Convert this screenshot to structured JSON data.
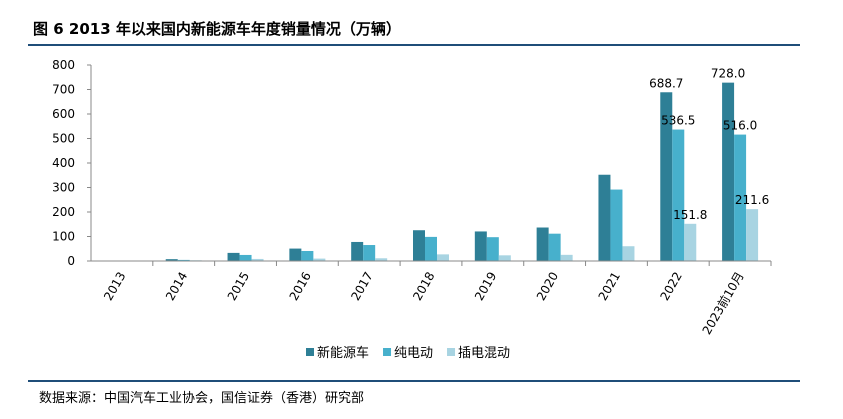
{
  "title": "图 6  2013 年以来国内新能源车年度销量情况（万辆）",
  "source": "数据来源：中国汽车工业协会，国信证券（香港）研究部",
  "chart_data": {
    "type": "bar",
    "title": "",
    "xlabel": "",
    "ylabel": "",
    "ylim": [
      0,
      800
    ],
    "yticks": [
      0,
      100,
      200,
      300,
      400,
      500,
      600,
      700,
      800
    ],
    "grid": false,
    "legend_position": "bottom",
    "categories": [
      "2013",
      "2014",
      "2015",
      "2016",
      "2017",
      "2018",
      "2019",
      "2020",
      "2021",
      "2022",
      "2023前10月"
    ],
    "series": [
      {
        "name": "新能源车",
        "color": "#2e7f96",
        "values": [
          1.8,
          7.5,
          33.1,
          50.7,
          77.7,
          125.6,
          120.6,
          136.7,
          352.1,
          688.7,
          728.0
        ]
      },
      {
        "name": "纯电动",
        "color": "#47b0cc",
        "values": [
          1.5,
          4.5,
          24.7,
          40.9,
          65.2,
          98.4,
          97.2,
          111.5,
          291.6,
          536.5,
          516.0
        ]
      },
      {
        "name": "插电混动",
        "color": "#a8d4e2",
        "values": [
          0.3,
          3.0,
          8.4,
          9.8,
          11.1,
          27.1,
          23.2,
          25.1,
          60.3,
          151.8,
          211.6
        ]
      }
    ],
    "data_labels": [
      {
        "category": "2022",
        "series": "新能源车",
        "text": "688.7"
      },
      {
        "category": "2022",
        "series": "纯电动",
        "text": "536.5"
      },
      {
        "category": "2022",
        "series": "插电混动",
        "text": "151.8"
      },
      {
        "category": "2023前10月",
        "series": "新能源车",
        "text": "728.0"
      },
      {
        "category": "2023前10月",
        "series": "纯电动",
        "text": "516.0"
      },
      {
        "category": "2023前10月",
        "series": "插电混动",
        "text": "211.6"
      }
    ]
  }
}
